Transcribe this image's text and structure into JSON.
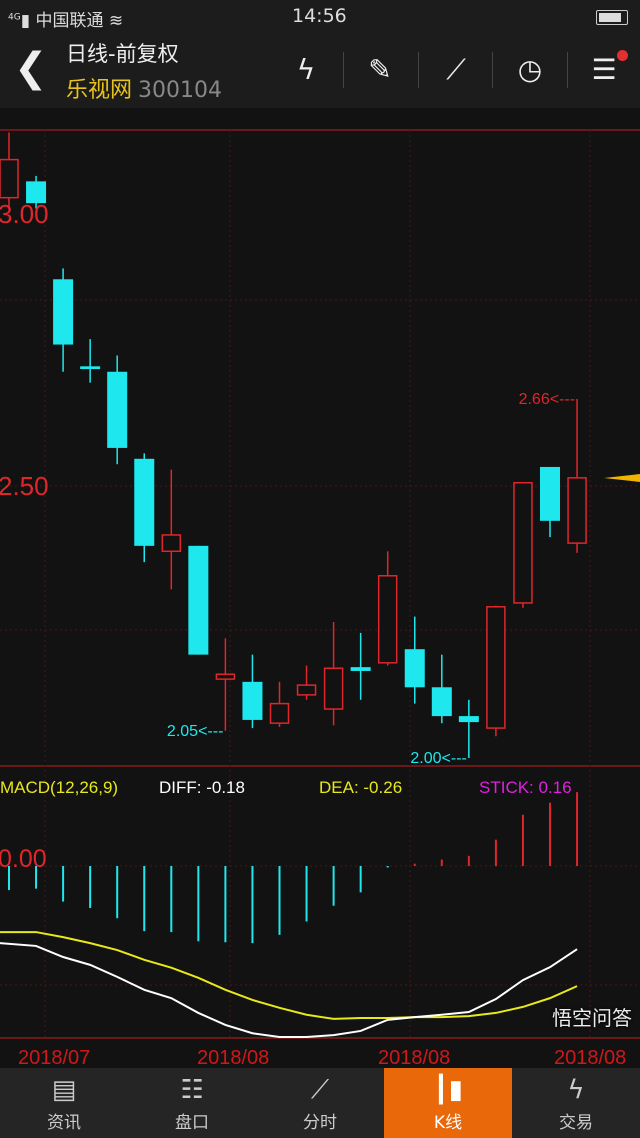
{
  "status": {
    "carrier": "中国联通",
    "network": "4G",
    "time": "14:56"
  },
  "header": {
    "title": "日线-前复权",
    "stock_name": "乐视网",
    "stock_code": "300104",
    "tools": [
      "flash-icon",
      "draw-pencil-icon",
      "trend-line-icon",
      "clock-icon",
      "menu-list-icon"
    ]
  },
  "chart_data": [
    {
      "type": "candlestick",
      "y_ticks": [
        "3.00",
        "2.50"
      ],
      "ylim": [
        1.97,
        3.16
      ],
      "colors": {
        "up": "#e0262a",
        "down": "#1ee8ee"
      },
      "candles": [
        {
          "o": 3.03,
          "h": 3.15,
          "l": 3.01,
          "c": 3.1
        },
        {
          "o": 3.06,
          "h": 3.07,
          "l": 3.01,
          "c": 3.02
        },
        {
          "o": 2.88,
          "h": 2.9,
          "l": 2.71,
          "c": 2.76
        },
        {
          "o": 2.72,
          "h": 2.77,
          "l": 2.69,
          "c": 2.715
        },
        {
          "o": 2.71,
          "h": 2.74,
          "l": 2.54,
          "c": 2.57
        },
        {
          "o": 2.55,
          "h": 2.56,
          "l": 2.36,
          "c": 2.39
        },
        {
          "o": 2.38,
          "h": 2.53,
          "l": 2.31,
          "c": 2.41
        },
        {
          "o": 2.39,
          "h": 2.39,
          "l": 2.19,
          "c": 2.19
        },
        {
          "o": 2.145,
          "h": 2.22,
          "l": 2.05,
          "c": 2.154
        },
        {
          "o": 2.14,
          "h": 2.19,
          "l": 2.055,
          "c": 2.07
        },
        {
          "o": 2.064,
          "h": 2.14,
          "l": 2.057,
          "c": 2.1
        },
        {
          "o": 2.116,
          "h": 2.17,
          "l": 2.107,
          "c": 2.134
        },
        {
          "o": 2.09,
          "h": 2.25,
          "l": 2.06,
          "c": 2.165
        },
        {
          "o": 2.167,
          "h": 2.23,
          "l": 2.107,
          "c": 2.16
        },
        {
          "o": 2.175,
          "h": 2.38,
          "l": 2.17,
          "c": 2.335
        },
        {
          "o": 2.2,
          "h": 2.26,
          "l": 2.1,
          "c": 2.13
        },
        {
          "o": 2.13,
          "h": 2.19,
          "l": 2.064,
          "c": 2.077
        },
        {
          "o": 2.077,
          "h": 2.107,
          "l": 2.0,
          "c": 2.066
        },
        {
          "o": 2.055,
          "h": 2.28,
          "l": 2.04,
          "c": 2.278
        },
        {
          "o": 2.285,
          "h": 2.507,
          "l": 2.276,
          "c": 2.506
        },
        {
          "o": 2.535,
          "h": 2.535,
          "l": 2.406,
          "c": 2.436
        },
        {
          "o": 2.395,
          "h": 2.66,
          "l": 2.377,
          "c": 2.515
        }
      ],
      "annotations": [
        {
          "label": "2.66<---",
          "index": 21,
          "price": 2.66
        },
        {
          "label": "2.05<---",
          "index": 8,
          "price": 2.05
        },
        {
          "label": "2.00<---",
          "index": 17,
          "price": 2.0
        }
      ],
      "x_ticks": [
        "2018/07",
        "2018/08",
        "2018/08",
        "2018/08"
      ]
    },
    {
      "type": "macd",
      "title": "MACD(12,26,9)",
      "diff_label": "DIFF: -0.18",
      "dea_label": "DEA: -0.26",
      "stick_label": "STICK: 0.16",
      "zero_label": "0.00",
      "colors": {
        "diff": "#ffffff",
        "dea": "#e8e81a",
        "stick_label": "#e020e0"
      },
      "stick": [
        -0.052,
        -0.049,
        -0.077,
        -0.091,
        -0.113,
        -0.141,
        -0.143,
        -0.163,
        -0.165,
        -0.167,
        -0.149,
        -0.12,
        -0.086,
        -0.057,
        -0.001,
        0.005,
        0.014,
        0.022,
        0.057,
        0.111,
        0.137,
        0.16
      ],
      "diff": [
        -0.167,
        -0.173,
        -0.197,
        -0.214,
        -0.24,
        -0.268,
        -0.286,
        -0.318,
        -0.344,
        -0.362,
        -0.37,
        -0.37,
        -0.366,
        -0.357,
        -0.333,
        -0.327,
        -0.322,
        -0.316,
        -0.288,
        -0.247,
        -0.219,
        -0.18
      ],
      "dea": [
        -0.143,
        -0.143,
        -0.154,
        -0.167,
        -0.182,
        -0.203,
        -0.22,
        -0.242,
        -0.268,
        -0.29,
        -0.307,
        -0.322,
        -0.331,
        -0.329,
        -0.329,
        -0.327,
        -0.327,
        -0.325,
        -0.318,
        -0.305,
        -0.286,
        -0.26
      ]
    }
  ],
  "tabbar": {
    "items": [
      {
        "label": "资讯",
        "icon": "news-icon"
      },
      {
        "label": "盘口",
        "icon": "order-book-icon"
      },
      {
        "label": "分时",
        "icon": "intraday-icon"
      },
      {
        "label": "K线",
        "icon": "candlestick-icon"
      },
      {
        "label": "交易",
        "icon": "flash-icon"
      }
    ],
    "active": 3
  },
  "watermark": "悟空问答"
}
